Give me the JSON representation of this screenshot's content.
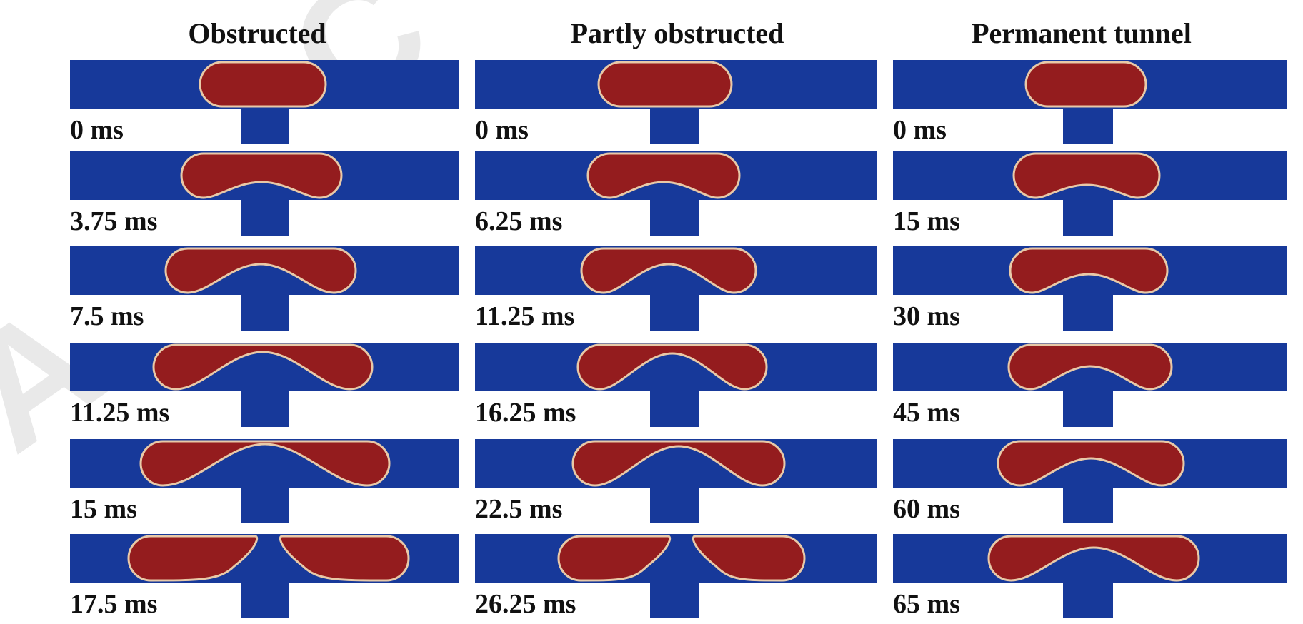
{
  "figure": {
    "columns": [
      {
        "title": "Obstructed",
        "times": [
          "0 ms",
          "3.75 ms",
          "7.5 ms",
          "11.25 ms",
          "15 ms",
          "17.5 ms"
        ]
      },
      {
        "title": "Partly obstructed",
        "times": [
          "0 ms",
          "6.25 ms",
          "11.25 ms",
          "16.25 ms",
          "22.5 ms",
          "26.25 ms"
        ]
      },
      {
        "title": "Permanent tunnel",
        "times": [
          "0 ms",
          "15 ms",
          "30 ms",
          "45 ms",
          "60 ms",
          "65 ms"
        ]
      }
    ],
    "colors": {
      "channel": "#17399a",
      "droplet": "#941c1e",
      "droplet_edge": "#e8c9a8",
      "text": "#111111"
    },
    "watermark_letters": [
      "A",
      "C"
    ]
  }
}
